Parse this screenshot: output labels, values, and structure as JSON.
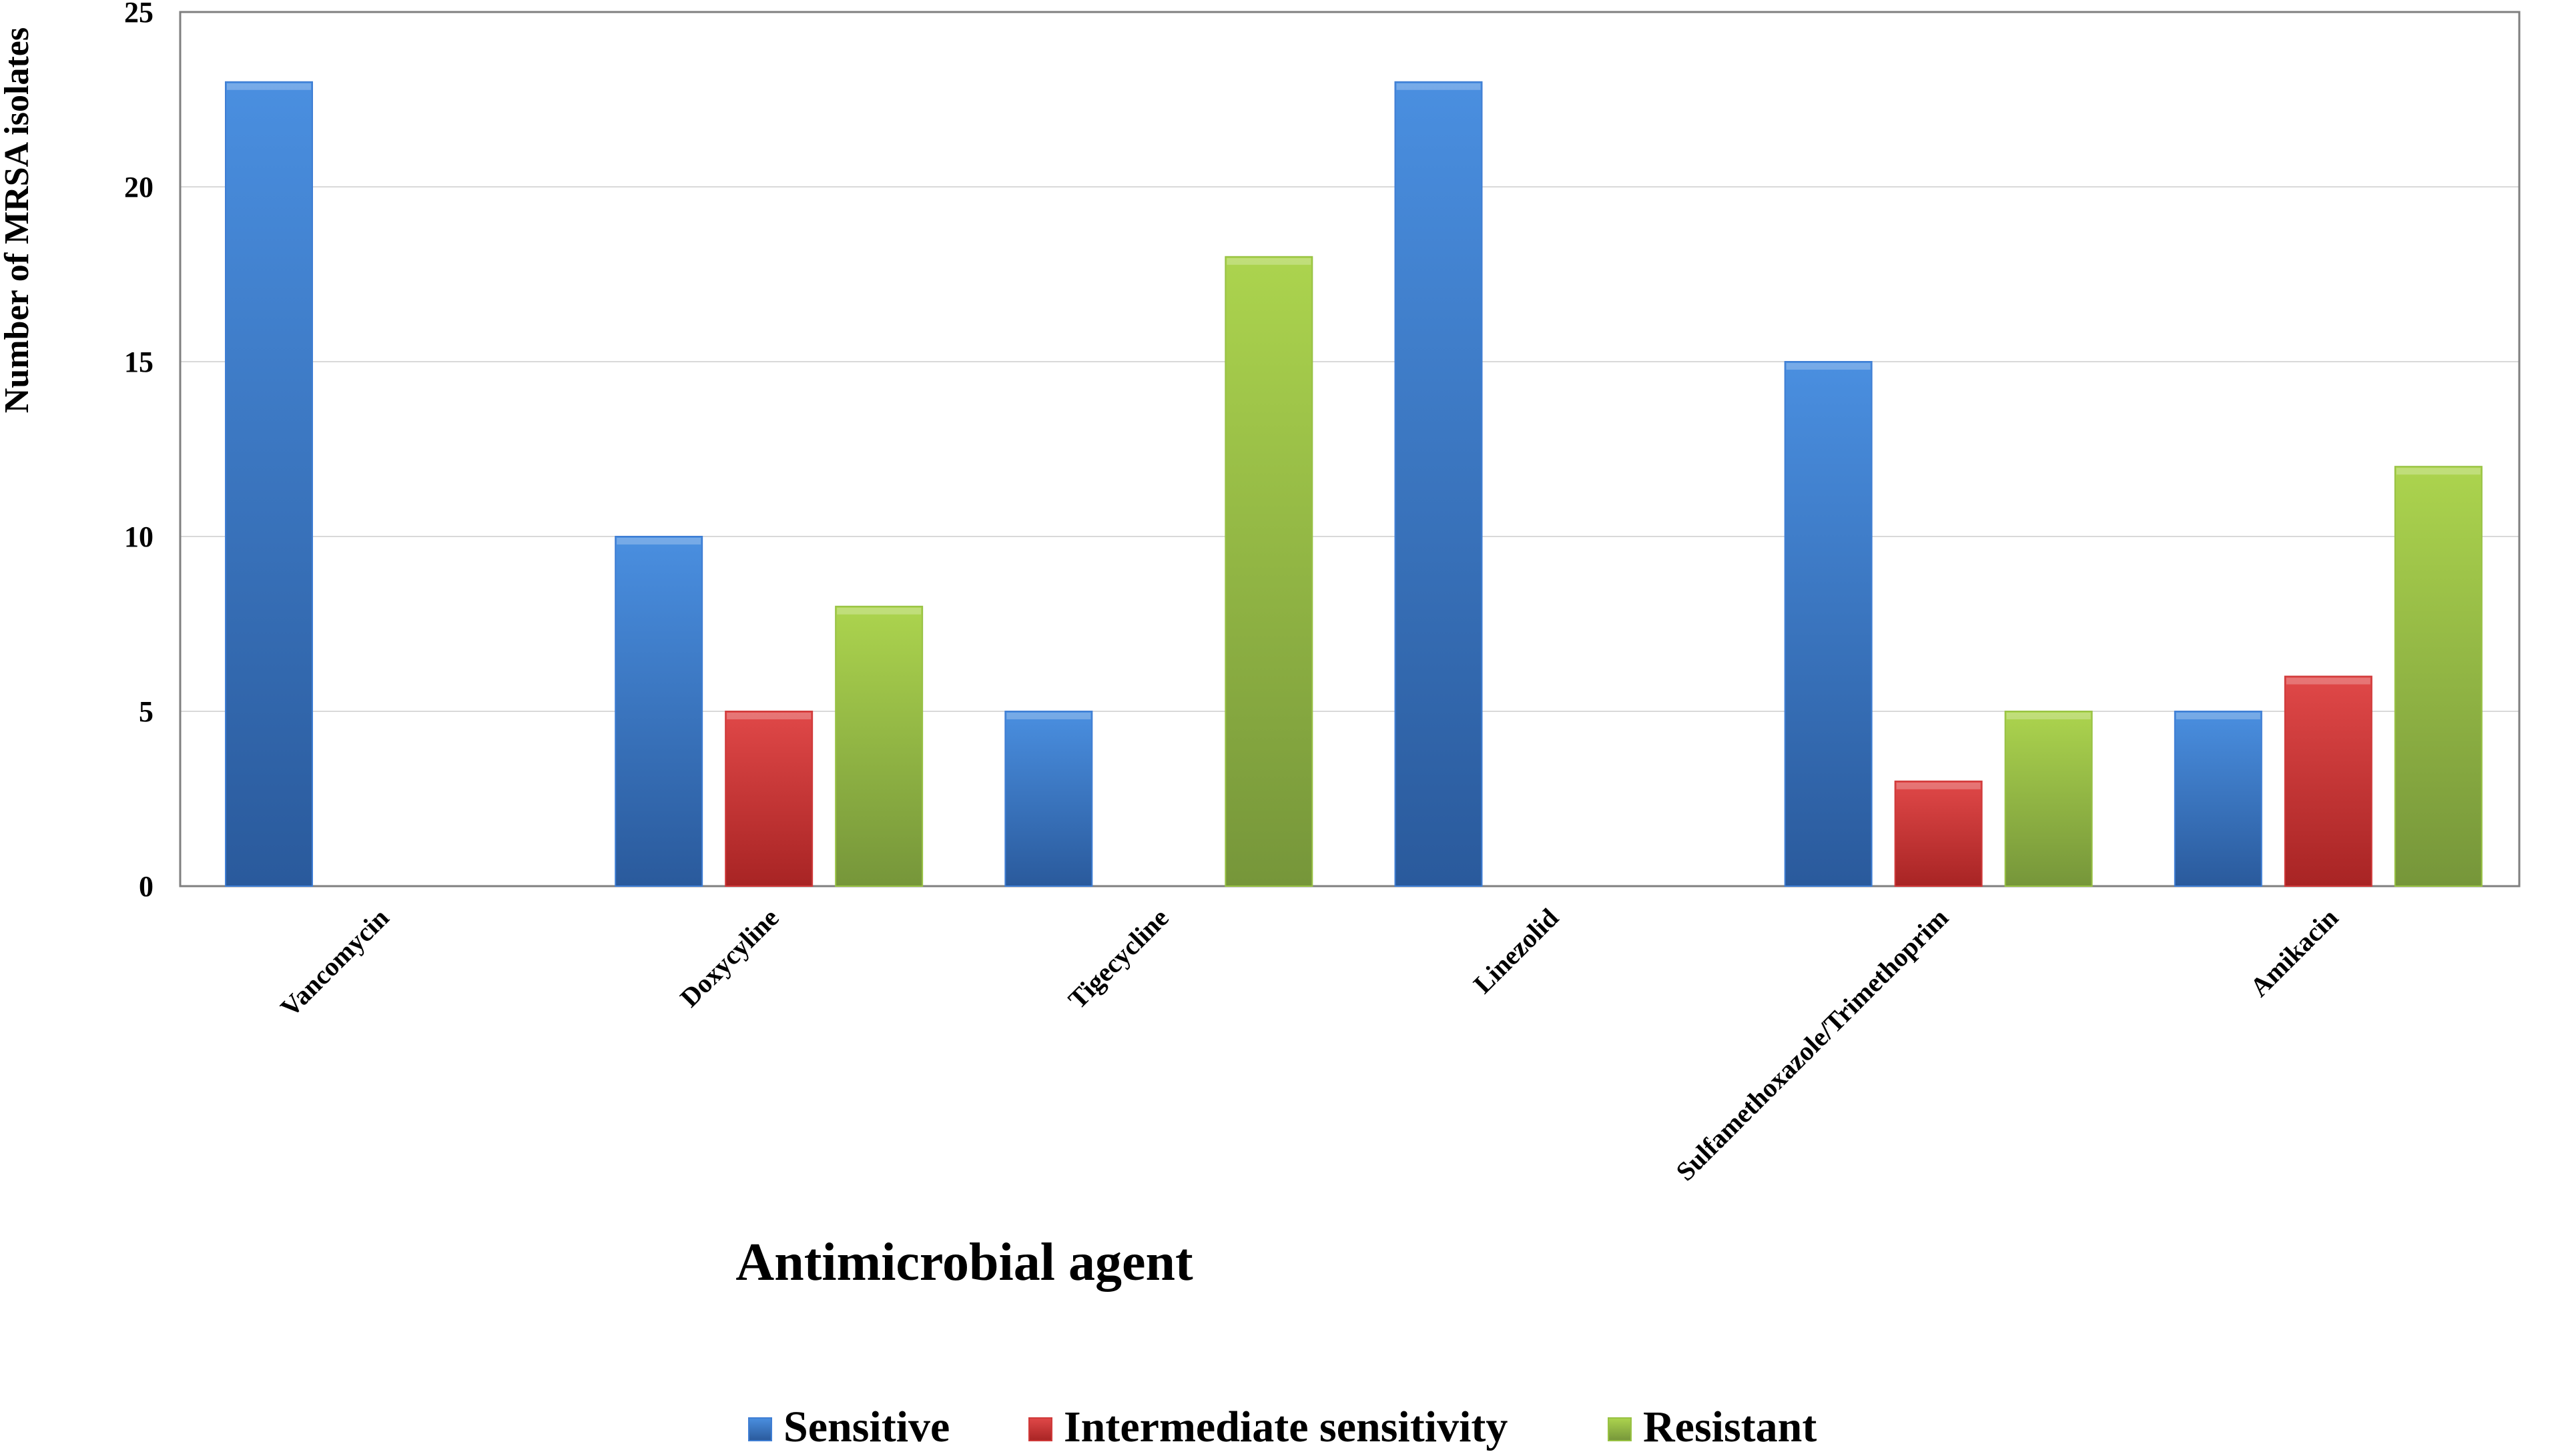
{
  "chart_data": {
    "type": "bar",
    "title": "",
    "xlabel": "Antimicrobial agent",
    "ylabel": "Number of MRSA isolates",
    "ylim": [
      0,
      25
    ],
    "yticks": [
      "0",
      "5",
      "10",
      "15",
      "20",
      "25"
    ],
    "grid": true,
    "legend_position": "bottom",
    "categories": [
      "Vancomycin",
      "Doxycyline",
      "Tigecycline",
      "Linezolid",
      "Sulfamethoxazole/Trimethoprim",
      "Amikacin"
    ],
    "series": [
      {
        "name": "Sensitive",
        "values": [
          23,
          10,
          5,
          23,
          15,
          5
        ],
        "color": "#3f7ed4"
      },
      {
        "name": "Intermediate sensitivity",
        "values": [
          0,
          5,
          0,
          0,
          3,
          6
        ],
        "color": "#d03a3a"
      },
      {
        "name": "Resistant",
        "values": [
          0,
          8,
          18,
          0,
          5,
          12
        ],
        "color": "#98c243"
      }
    ]
  }
}
